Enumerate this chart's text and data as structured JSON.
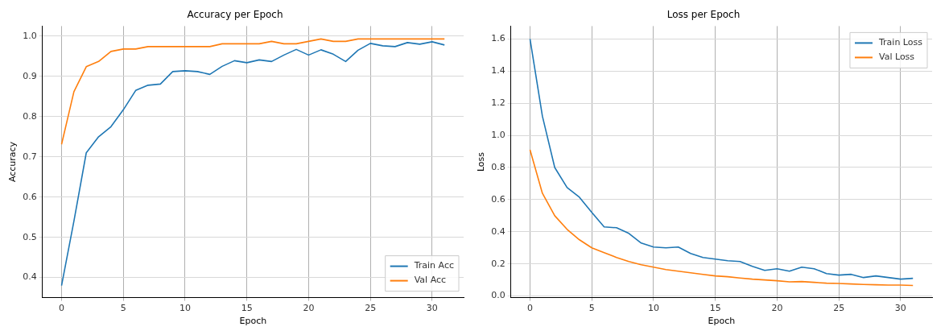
{
  "chart_data": [
    {
      "type": "line",
      "title": "Accuracy per Epoch",
      "xlabel": "Epoch",
      "ylabel": "Accuracy",
      "x": [
        0,
        1,
        2,
        3,
        4,
        5,
        6,
        7,
        8,
        9,
        10,
        11,
        12,
        13,
        14,
        15,
        16,
        17,
        18,
        19,
        20,
        21,
        22,
        23,
        24,
        25,
        26,
        27,
        28,
        29,
        30,
        31
      ],
      "series": [
        {
          "name": "Train Acc",
          "color": "#1f77b4",
          "values": [
            0.38,
            0.54,
            0.71,
            0.75,
            0.775,
            0.817,
            0.865,
            0.878,
            0.881,
            0.912,
            0.914,
            0.912,
            0.905,
            0.925,
            0.939,
            0.934,
            0.941,
            0.937,
            0.953,
            0.967,
            0.953,
            0.966,
            0.955,
            0.937,
            0.965,
            0.982,
            0.976,
            0.974,
            0.984,
            0.98,
            0.986,
            0.978
          ]
        },
        {
          "name": "Val Acc",
          "color": "#ff7f0e",
          "values": [
            0.731,
            0.862,
            0.924,
            0.937,
            0.962,
            0.968,
            0.968,
            0.974,
            0.974,
            0.974,
            0.974,
            0.974,
            0.974,
            0.981,
            0.981,
            0.981,
            0.981,
            0.987,
            0.981,
            0.981,
            0.987,
            0.993,
            0.987,
            0.987,
            0.993,
            0.993,
            0.993,
            0.993,
            0.993,
            0.993,
            0.993,
            0.993
          ]
        }
      ],
      "xlim": [
        -1.55,
        32.55
      ],
      "xticks": [
        0,
        5,
        10,
        15,
        20,
        25,
        30
      ],
      "ylim": [
        0.35,
        1.025
      ],
      "yticks": [
        {
          "value": 0.4,
          "label": "0.4"
        },
        {
          "value": 0.5,
          "label": "0.5"
        },
        {
          "value": 0.6,
          "label": "0.6"
        },
        {
          "value": 0.7,
          "label": "0.7"
        },
        {
          "value": 0.8,
          "label": "0.8"
        },
        {
          "value": 0.9,
          "label": "0.9"
        },
        {
          "value": 1.0,
          "label": "1.0"
        }
      ],
      "grid": true,
      "legend": "bottom right",
      "marker": "none",
      "line_style": "solid"
    },
    {
      "type": "line",
      "title": "Loss per Epoch",
      "xlabel": "Epoch",
      "ylabel": "Loss",
      "x": [
        0,
        1,
        2,
        3,
        4,
        5,
        6,
        7,
        8,
        9,
        10,
        11,
        12,
        13,
        14,
        15,
        16,
        17,
        18,
        19,
        20,
        21,
        22,
        23,
        24,
        25,
        26,
        27,
        28,
        29,
        30,
        31
      ],
      "series": [
        {
          "name": "Train Loss",
          "color": "#1f77b4",
          "values": [
            1.6,
            1.12,
            0.8,
            0.675,
            0.615,
            0.52,
            0.43,
            0.425,
            0.39,
            0.33,
            0.305,
            0.3,
            0.305,
            0.265,
            0.24,
            0.23,
            0.22,
            0.215,
            0.185,
            0.16,
            0.17,
            0.155,
            0.18,
            0.17,
            0.14,
            0.13,
            0.135,
            0.115,
            0.125,
            0.115,
            0.105,
            0.11
          ]
        },
        {
          "name": "Val Loss",
          "color": "#ff7f0e",
          "values": [
            0.91,
            0.64,
            0.5,
            0.415,
            0.35,
            0.3,
            0.27,
            0.24,
            0.215,
            0.195,
            0.18,
            0.165,
            0.155,
            0.145,
            0.135,
            0.125,
            0.12,
            0.112,
            0.105,
            0.1,
            0.095,
            0.088,
            0.09,
            0.085,
            0.08,
            0.078,
            0.075,
            0.072,
            0.07,
            0.068,
            0.068,
            0.066
          ]
        }
      ],
      "xlim": [
        -1.55,
        32.55
      ],
      "xticks": [
        0,
        5,
        10,
        15,
        20,
        25,
        30
      ],
      "ylim": [
        -0.01,
        1.68
      ],
      "yticks": [
        {
          "value": 0,
          "label": "0.0"
        },
        {
          "value": 0.2,
          "label": "0.2"
        },
        {
          "value": 0.4,
          "label": "0.4"
        },
        {
          "value": 0.6,
          "label": "0.6"
        },
        {
          "value": 0.8,
          "label": "0.8"
        },
        {
          "value": 1.0,
          "label": "1.0"
        },
        {
          "value": 1.2,
          "label": "1.2"
        },
        {
          "value": 1.4,
          "label": "1.4"
        },
        {
          "value": 1.6,
          "label": "1.6"
        }
      ],
      "grid": true,
      "legend": "top right",
      "marker": "none",
      "line_style": "solid"
    }
  ]
}
